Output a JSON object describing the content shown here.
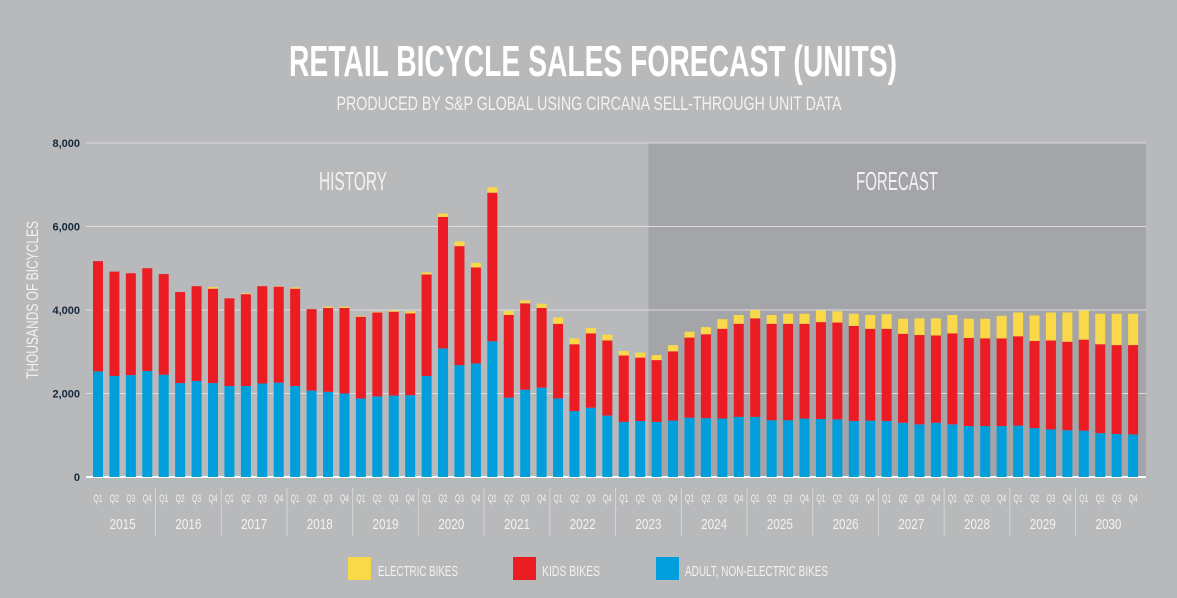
{
  "chart_data": {
    "type": "bar",
    "stacked": true,
    "title": "RETAIL BICYCLE SALES FORECAST (UNITS)",
    "subtitle": "PRODUCED BY S&P GLOBAL USING CIRCANA SELL-THROUGH UNIT DATA",
    "ylabel": "THOUSANDS OF BICYCLES",
    "ylim": [
      0,
      8000
    ],
    "yticks": [
      "0",
      "2,000",
      "4,000",
      "6,000",
      "8,000"
    ],
    "ytick_values": [
      0,
      2000,
      4000,
      6000,
      8000
    ],
    "grid": true,
    "legend_position": "bottom",
    "regions": [
      {
        "label": "HISTORY",
        "from": "2015 Q1",
        "to": "2023 Q2"
      },
      {
        "label": "FORECAST",
        "from": "2023 Q3",
        "to": "2030 Q4"
      }
    ],
    "quarters": [
      "Q1",
      "Q2",
      "Q3",
      "Q4"
    ],
    "years": [
      "2015",
      "2016",
      "2017",
      "2018",
      "2019",
      "2020",
      "2021",
      "2022",
      "2023",
      "2024",
      "2025",
      "2026",
      "2027",
      "2028",
      "2029",
      "2030"
    ],
    "colors": {
      "electric": "#f9d84a",
      "kids": "#ec1c24",
      "adult": "#009fdb",
      "background": "#b8b9bb",
      "forecast_shade": "#a4a5a8"
    },
    "series": [
      {
        "name": "ADULT, NON-ELECTRIC BIKES",
        "key": "adult",
        "values": [
          2530,
          2420,
          2440,
          2540,
          2450,
          2250,
          2300,
          2250,
          2180,
          2180,
          2240,
          2260,
          2180,
          2070,
          2040,
          2000,
          1880,
          1930,
          1950,
          1960,
          2420,
          3080,
          2680,
          2720,
          3250,
          1900,
          2090,
          2140,
          1880,
          1580,
          1660,
          1470,
          1320,
          1340,
          1320,
          1350,
          1420,
          1410,
          1400,
          1440,
          1440,
          1360,
          1360,
          1400,
          1390,
          1380,
          1340,
          1350,
          1340,
          1300,
          1260,
          1300,
          1260,
          1220,
          1220,
          1220,
          1230,
          1170,
          1140,
          1120,
          1110,
          1050,
          1030,
          1020
        ]
      },
      {
        "name": "KIDS BIKES",
        "key": "kids",
        "values": [
          2640,
          2500,
          2440,
          2460,
          2410,
          2180,
          2270,
          2260,
          2100,
          2200,
          2330,
          2300,
          2330,
          1950,
          2010,
          2050,
          1960,
          2010,
          2010,
          1960,
          2430,
          3150,
          2850,
          2300,
          3560,
          1980,
          2070,
          1910,
          1790,
          1600,
          1780,
          1800,
          1590,
          1520,
          1480,
          1660,
          1920,
          2010,
          2150,
          2230,
          2360,
          2310,
          2310,
          2270,
          2320,
          2320,
          2280,
          2200,
          2210,
          2130,
          2140,
          2090,
          2180,
          2110,
          2100,
          2100,
          2140,
          2090,
          2130,
          2120,
          2180,
          2130,
          2130,
          2140
        ]
      },
      {
        "name": "ELECTRIC BIKES",
        "key": "electric",
        "values": [
          0,
          0,
          0,
          0,
          0,
          0,
          0,
          40,
          0,
          20,
          0,
          10,
          30,
          0,
          30,
          30,
          20,
          20,
          30,
          50,
          50,
          80,
          110,
          110,
          130,
          100,
          70,
          100,
          150,
          140,
          130,
          140,
          110,
          120,
          120,
          150,
          140,
          170,
          230,
          210,
          200,
          210,
          240,
          240,
          280,
          270,
          290,
          330,
          350,
          360,
          400,
          410,
          440,
          460,
          470,
          540,
          570,
          610,
          670,
          700,
          700,
          730,
          750,
          750
        ]
      }
    ],
    "legend": [
      "ELECTRIC BIKES",
      "KIDS BIKES",
      "ADULT, NON-ELECTRIC BIKES"
    ]
  }
}
